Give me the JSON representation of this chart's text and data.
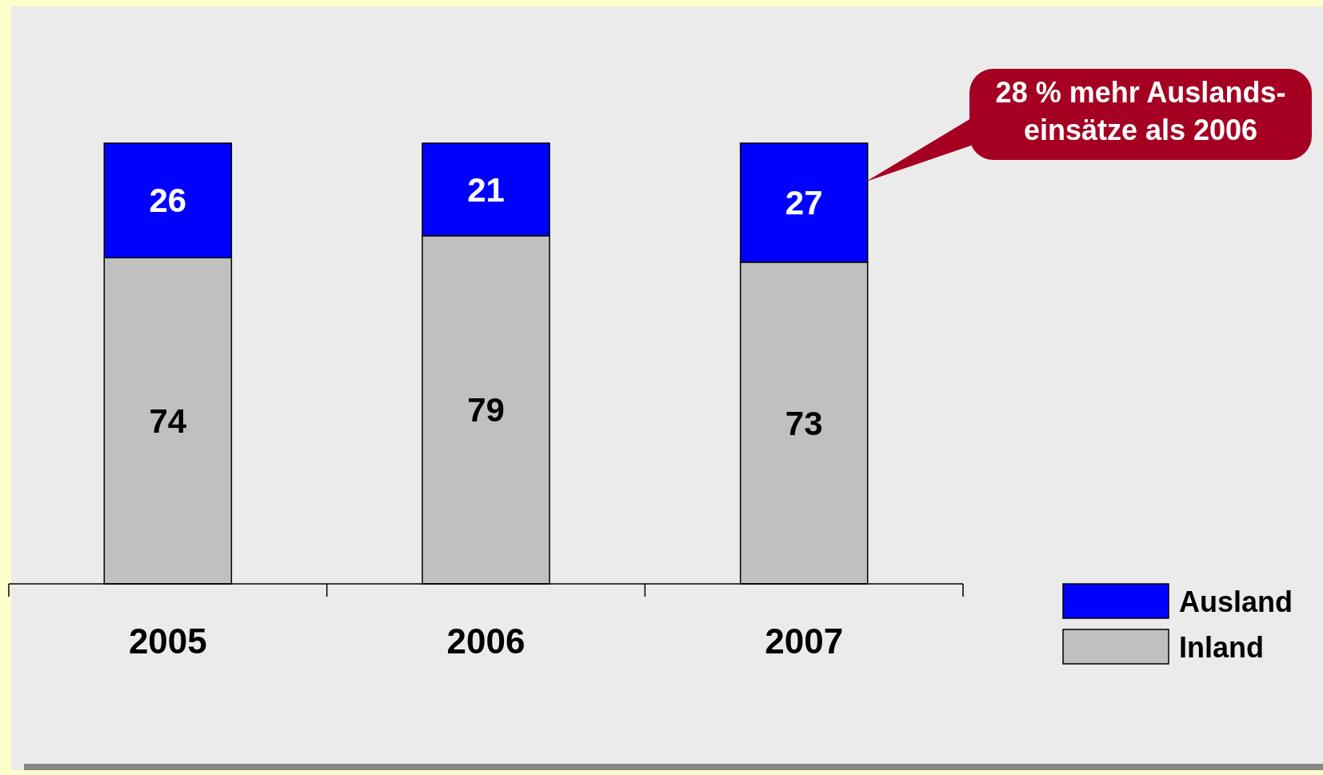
{
  "chart_data": {
    "type": "bar",
    "stacked": true,
    "data_labels": true,
    "legend": "bottom right",
    "categories": [
      "2005",
      "2006",
      "2007"
    ],
    "series": [
      {
        "name": "Inland",
        "color": "#c0c0c0",
        "values": [
          74,
          79,
          73
        ]
      },
      {
        "name": "Ausland",
        "color": "#0000ff",
        "values": [
          26,
          21,
          27
        ]
      }
    ],
    "annotations": [
      "28 % mehr Auslands-\neinsätze als 2006"
    ]
  }
}
